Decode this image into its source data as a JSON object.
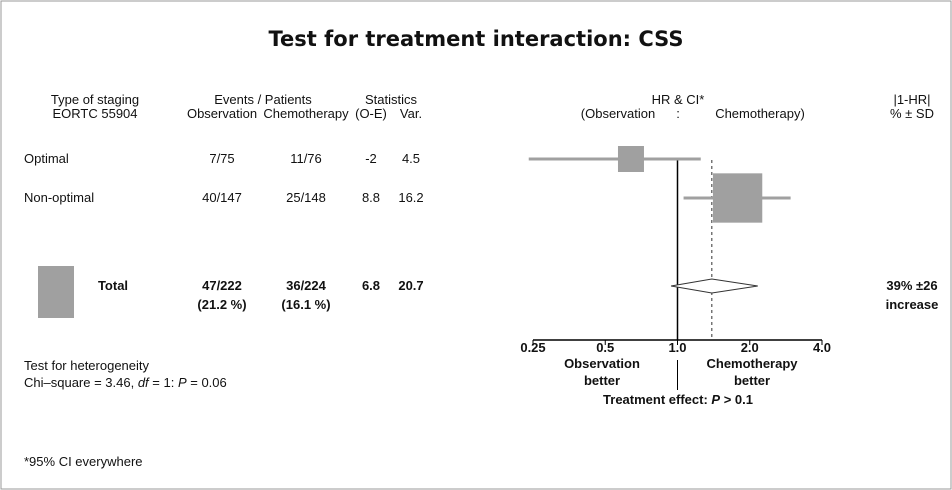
{
  "chart_data": {
    "type": "forest",
    "title": "Test for treatment interaction: CSS",
    "headers": {
      "staging": [
        "Type of staging",
        "EORTC 55904"
      ],
      "events": "Events / Patients",
      "observation": "Observation",
      "chemotherapy": "Chemotherapy",
      "statistics": "Statistics",
      "oe": "(O-E)",
      "var": "Var.",
      "hr": "HR & CI*",
      "hr_left": "(Observation",
      "hr_sep": ":",
      "hr_right": "Chemotherapy)",
      "diff": [
        "|1-HR|",
        "% ± SD"
      ]
    },
    "rows": [
      {
        "label": "Optimal",
        "observation": "7/75",
        "chemotherapy": "11/76",
        "oe": -2,
        "var": 4.5,
        "hr": 0.64,
        "ci": [
          0.24,
          1.25
        ]
      },
      {
        "label": "Non-optimal",
        "observation": "40/147",
        "chemotherapy": "25/148",
        "oe": 8.8,
        "var": 16.2,
        "hr": 1.78,
        "ci": [
          1.06,
          2.96
        ]
      }
    ],
    "total": {
      "label": "Total",
      "observation": [
        "47/222",
        "(21.2 %)"
      ],
      "chemotherapy": [
        "36/224",
        "(16.1 %)"
      ],
      "oe": 6.8,
      "var": 20.7,
      "hr": 1.39,
      "ci": [
        0.94,
        2.16
      ],
      "diff": [
        "39% ±26",
        "increase"
      ]
    },
    "xlim": [
      0.25,
      4
    ],
    "xticks": [
      0.25,
      0.5,
      {
        "value": 1,
        "label": "1.0"
      },
      {
        "value": 2,
        "label": "2.0"
      },
      {
        "value": 4,
        "label": "4.0"
      }
    ],
    "log_x": true,
    "reference": 1,
    "color": "#a0a0a0",
    "x_labels": {
      "left": [
        "Observation",
        "better"
      ],
      "right": [
        "Chemotherapy",
        "better"
      ]
    },
    "effect": [
      "Treatment effect: ",
      "P",
      " > 0.1"
    ],
    "heterogeneity": {
      "title": "Test for heterogeneity",
      "text": [
        "Chi–square = 3.46, ",
        "df",
        " = 1: ",
        "P",
        " = 0.06"
      ]
    },
    "footnote": "*95% CI everywhere"
  }
}
